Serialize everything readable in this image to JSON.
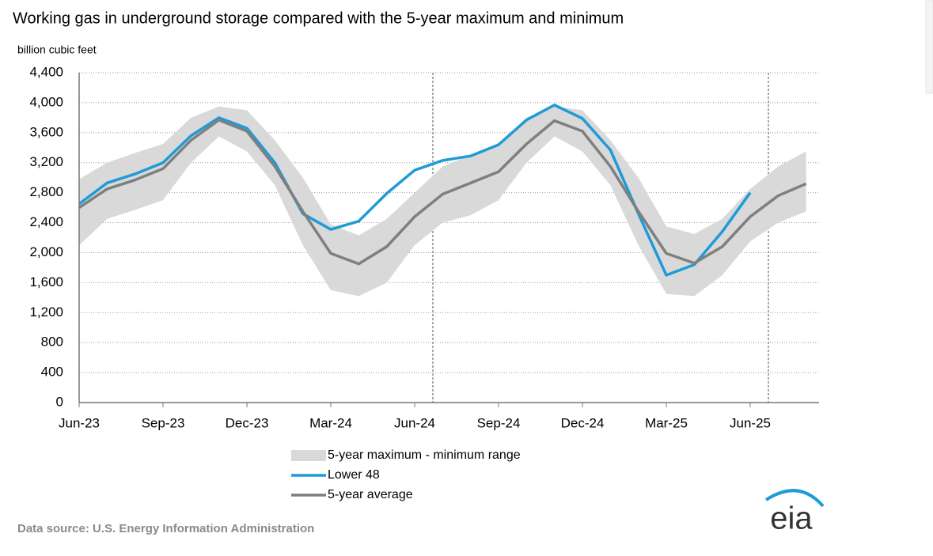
{
  "chart_data": {
    "type": "line",
    "title": "Working gas in underground  storage compared with the 5-year maximum  and minimum",
    "y_label": "billion cubic feet",
    "x": [
      "2023-06",
      "2023-07",
      "2023-08",
      "2023-09",
      "2023-10",
      "2023-11",
      "2023-12",
      "2024-01",
      "2024-02",
      "2024-03",
      "2024-04",
      "2024-05",
      "2024-06",
      "2024-07",
      "2024-08",
      "2024-09",
      "2024-10",
      "2024-11",
      "2024-12",
      "2025-01",
      "2025-02",
      "2025-03",
      "2025-04",
      "2025-05",
      "2025-06",
      "2025-07",
      "2025-08"
    ],
    "xlim": [
      "2023-06",
      "2025-09"
    ],
    "xticks": [
      {
        "value": "2023-06",
        "label": "Jun-23"
      },
      {
        "value": "2023-09",
        "label": "Sep-23"
      },
      {
        "value": "2023-12",
        "label": "Dec-23"
      },
      {
        "value": "2024-03",
        "label": "Mar-24"
      },
      {
        "value": "2024-06",
        "label": "Jun-24"
      },
      {
        "value": "2024-09",
        "label": "Sep-24"
      },
      {
        "value": "2024-12",
        "label": "Dec-24"
      },
      {
        "value": "2025-03",
        "label": "Mar-25"
      },
      {
        "value": "2025-06",
        "label": "Jun-25"
      }
    ],
    "ylim": [
      0,
      4400
    ],
    "yticks": [
      0,
      {
        "value": 400,
        "label": "400"
      },
      800,
      {
        "value": 1200,
        "label": "1,200"
      },
      {
        "value": 1600,
        "label": "1,600"
      },
      {
        "value": 2000,
        "label": "2,000"
      },
      {
        "value": 2400,
        "label": "2,400"
      },
      {
        "value": 2800,
        "label": "2,800"
      },
      {
        "value": 3200,
        "label": "3,200"
      },
      {
        "value": 3600,
        "label": "3,600"
      },
      {
        "value": 4000,
        "label": "4,000"
      },
      {
        "value": 4400,
        "label": "4,400"
      }
    ],
    "grid": true,
    "series": [
      {
        "name": "5-year maximum - minimum range",
        "type": "range",
        "color": "#d9d9d9",
        "max": [
          2980,
          3200,
          3330,
          3450,
          3800,
          3950,
          3900,
          3500,
          3000,
          2380,
          2230,
          2450,
          2800,
          3150,
          3300,
          3450,
          3800,
          3950,
          3900,
          3500,
          3000,
          2350,
          2250,
          2450,
          2850,
          3150,
          3350
        ],
        "min": [
          2100,
          2450,
          2570,
          2700,
          3200,
          3550,
          3350,
          2900,
          2100,
          1500,
          1420,
          1600,
          2100,
          2400,
          2500,
          2700,
          3200,
          3550,
          3350,
          2900,
          2100,
          1450,
          1420,
          1700,
          2150,
          2400,
          2550
        ]
      },
      {
        "name": "Lower 48",
        "type": "line",
        "color": "#1f9bd7",
        "values": [
          2650,
          2930,
          3050,
          3200,
          3560,
          3800,
          3660,
          3200,
          2520,
          2310,
          2420,
          2790,
          3100,
          3230,
          3290,
          3440,
          3770,
          3970,
          3790,
          3370,
          2520,
          1700,
          1840,
          2280,
          2800,
          null,
          null
        ]
      },
      {
        "name": "5-year average",
        "type": "line",
        "color": "#7f7f7f",
        "values": [
          2600,
          2850,
          2970,
          3120,
          3500,
          3770,
          3620,
          3150,
          2550,
          1990,
          1850,
          2080,
          2480,
          2780,
          2930,
          3080,
          3450,
          3760,
          3620,
          3150,
          2550,
          1990,
          1860,
          2080,
          2480,
          2760,
          2920
        ]
      }
    ],
    "source": "Data source:  U.S. Energy Information Administration",
    "logo": "eia"
  }
}
